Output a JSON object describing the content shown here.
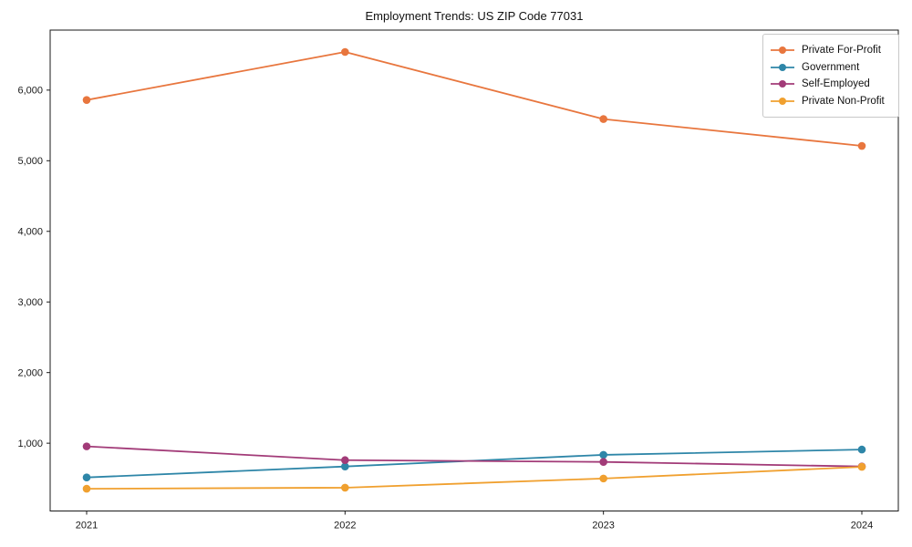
{
  "chart_data": {
    "type": "line",
    "title": "Employment Trends: US ZIP Code 77031",
    "categories": [
      "2021",
      "2022",
      "2023",
      "2024"
    ],
    "series": [
      {
        "name": "Private For-Profit",
        "color": "#E8763E",
        "values": [
          5860,
          6540,
          5590,
          5210
        ]
      },
      {
        "name": "Government",
        "color": "#2E86A8",
        "values": [
          515,
          670,
          835,
          910
        ]
      },
      {
        "name": "Self-Employed",
        "color": "#A23B78",
        "values": [
          955,
          760,
          735,
          670
        ]
      },
      {
        "name": "Private Non-Profit",
        "color": "#F0A02F",
        "values": [
          355,
          370,
          500,
          665
        ]
      }
    ],
    "xlabel": "",
    "ylabel": "",
    "ylim": [
      40,
      6850
    ],
    "yticks": [
      1000,
      2000,
      3000,
      4000,
      5000,
      6000
    ],
    "ytick_labels": [
      "1,000",
      "2,000",
      "3,000",
      "4,000",
      "5,000",
      "6,000"
    ],
    "grid": false,
    "legend_position": "upper right",
    "marker": "circle",
    "axis_color": "#1a1a1a"
  }
}
